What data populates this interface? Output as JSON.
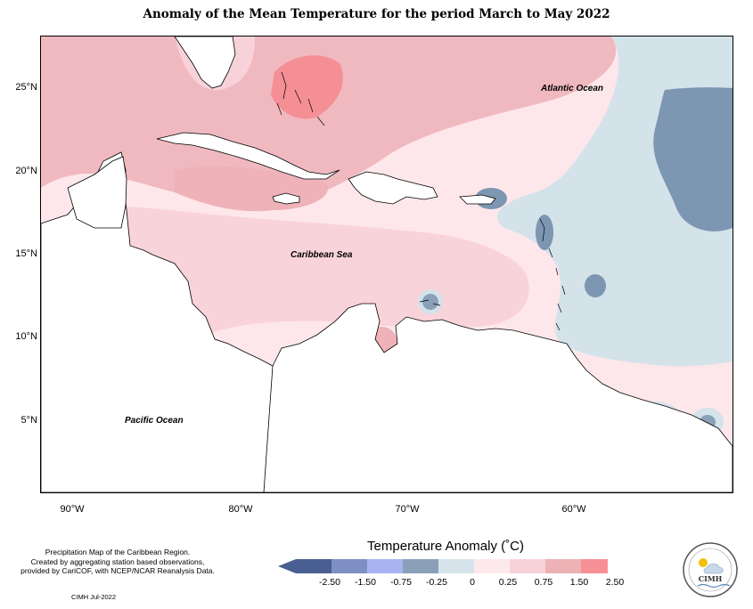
{
  "title": "Anomaly of the Mean Temperature for the period March to May 2022",
  "lat_ticks": [
    "25°N",
    "20°N",
    "15°N",
    "10°N",
    "5°N"
  ],
  "lon_ticks": [
    "90°W",
    "80°W",
    "70°W",
    "60°W"
  ],
  "region_labels": {
    "atlantic": "Atlantic Ocean",
    "caribbean": "Caribbean Sea",
    "pacific": "Pacific Ocean"
  },
  "credits": {
    "line1": "Precipitation Map of the Caribbean Region.",
    "line2": "Created by aggregating station based observations,",
    "line3": "provided by CariCOF, with NCEP/NCAR Reanalysis Data.",
    "date": "CIMH Jul-2022"
  },
  "legend": {
    "title": "Temperature Anomaly (˚C)",
    "ticks": [
      "-2.50",
      "-1.50",
      "-0.75",
      "-0.25",
      "0",
      "0.25",
      "0.75",
      "1.50",
      "2.50"
    ],
    "colors": [
      "#4a5f91",
      "#7e8fc3",
      "#a8b4f2",
      "#8aa0b8",
      "#d6e3ea",
      "#fde9ec",
      "#f8d2d9",
      "#ecb2b6",
      "#f69095"
    ]
  },
  "logo": {
    "name": "CIMH"
  },
  "colors": {
    "warm_light": "#fbdde2",
    "warm_mid": "#f0b8bf",
    "warm_strong": "#f49196",
    "cool_light": "#d3e2ea",
    "cool_mid": "#8aa0b8",
    "cool_strong": "#7e8fc3"
  }
}
